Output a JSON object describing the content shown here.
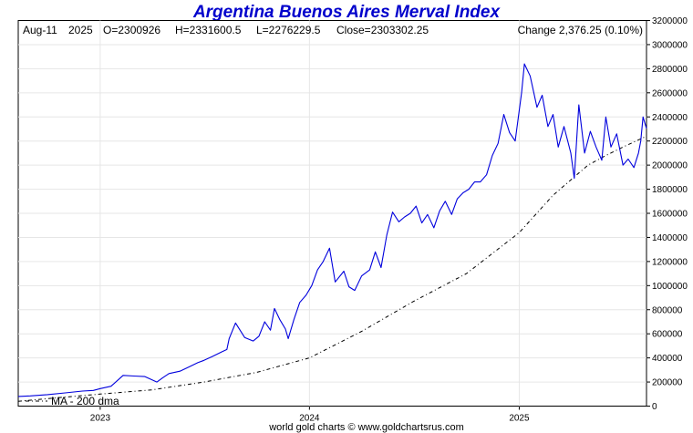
{
  "chart_data": {
    "type": "line",
    "title": "Argentina Buenos Aires Merval Index",
    "header": {
      "date": "Aug-11",
      "year": "2025",
      "open": "O=2300926",
      "high": "H=2331600.5",
      "low": "L=2276229.5",
      "close": "Close=2303302.25",
      "change": "Change 2,376.25 (0.10%)"
    },
    "x_tick_labels": [
      "2023",
      "2024",
      "2025"
    ],
    "x_ticks": [
      "2023-01-01",
      "2024-01-01",
      "2025-01-01"
    ],
    "xlim": [
      "2022-08-11",
      "2025-08-11"
    ],
    "y_tick_labels": [
      "0",
      "200000",
      "400000",
      "600000",
      "800000",
      "1000000",
      "1200000",
      "1400000",
      "1600000",
      "1800000",
      "2000000",
      "2200000",
      "2400000",
      "2600000",
      "2800000",
      "3000000",
      "3200000"
    ],
    "ylim": [
      0,
      3200000
    ],
    "grid": true,
    "legend": {
      "label": "MA - 200 dma",
      "placement": "bottom-left"
    },
    "footer": "world gold charts © www.goldchartsrus.com",
    "colors": {
      "title": "#0000cc",
      "price": "#0000dd",
      "ma": "#000000",
      "grid": "#e6e6e6"
    },
    "series": [
      {
        "key": "price",
        "x": [
          "2022-08-11",
          "2022-09-01",
          "2022-10-01",
          "2022-11-01",
          "2022-12-01",
          "2022-12-20",
          "2023-01-01",
          "2023-01-20",
          "2023-02-10",
          "2023-03-01",
          "2023-03-20",
          "2023-04-10",
          "2023-04-20",
          "2023-05-01",
          "2023-05-20",
          "2023-06-05",
          "2023-06-20",
          "2023-07-01",
          "2023-07-15",
          "2023-08-01",
          "2023-08-10",
          "2023-08-14",
          "2023-08-25",
          "2023-09-10",
          "2023-09-25",
          "2023-10-05",
          "2023-10-15",
          "2023-10-25",
          "2023-11-01",
          "2023-11-10",
          "2023-11-20",
          "2023-11-25",
          "2023-12-05",
          "2023-12-15",
          "2023-12-26",
          "2024-01-05",
          "2024-01-15",
          "2024-01-25",
          "2024-02-05",
          "2024-02-15",
          "2024-03-01",
          "2024-03-10",
          "2024-03-20",
          "2024-04-01",
          "2024-04-15",
          "2024-04-25",
          "2024-05-05",
          "2024-05-15",
          "2024-05-25",
          "2024-06-05",
          "2024-06-15",
          "2024-06-25",
          "2024-07-05",
          "2024-07-15",
          "2024-07-25",
          "2024-08-05",
          "2024-08-15",
          "2024-08-25",
          "2024-09-05",
          "2024-09-15",
          "2024-09-25",
          "2024-10-05",
          "2024-10-15",
          "2024-10-25",
          "2024-11-05",
          "2024-11-15",
          "2024-11-25",
          "2024-12-05",
          "2024-12-15",
          "2024-12-25",
          "2025-01-05",
          "2025-01-10",
          "2025-01-20",
          "2025-02-01",
          "2025-02-10",
          "2025-02-20",
          "2025-03-01",
          "2025-03-10",
          "2025-03-20",
          "2025-04-01",
          "2025-04-07",
          "2025-04-15",
          "2025-04-25",
          "2025-05-05",
          "2025-05-15",
          "2025-05-25",
          "2025-06-01",
          "2025-06-10",
          "2025-06-20",
          "2025-07-01",
          "2025-07-10",
          "2025-07-20",
          "2025-07-28",
          "2025-08-01",
          "2025-08-05",
          "2025-08-11"
        ],
        "values": [
          80000,
          85000,
          95000,
          110000,
          125000,
          130000,
          145000,
          165000,
          255000,
          250000,
          245000,
          200000,
          235000,
          270000,
          290000,
          325000,
          360000,
          380000,
          410000,
          450000,
          470000,
          560000,
          690000,
          570000,
          540000,
          580000,
          700000,
          630000,
          810000,
          720000,
          640000,
          560000,
          720000,
          860000,
          920000,
          1000000,
          1130000,
          1200000,
          1310000,
          1030000,
          1120000,
          990000,
          960000,
          1080000,
          1130000,
          1280000,
          1150000,
          1420000,
          1610000,
          1530000,
          1570000,
          1600000,
          1660000,
          1520000,
          1590000,
          1480000,
          1620000,
          1700000,
          1590000,
          1720000,
          1770000,
          1800000,
          1860000,
          1860000,
          1920000,
          2080000,
          2180000,
          2420000,
          2270000,
          2200000,
          2600000,
          2840000,
          2740000,
          2480000,
          2580000,
          2320000,
          2420000,
          2150000,
          2320000,
          2100000,
          1890000,
          2500000,
          2100000,
          2280000,
          2150000,
          2040000,
          2400000,
          2150000,
          2260000,
          2000000,
          2050000,
          1980000,
          2100000,
          2200000,
          2400000,
          2303302
        ]
      },
      {
        "key": "ma",
        "x": [
          "2022-08-11",
          "2022-11-01",
          "2023-01-01",
          "2023-04-01",
          "2023-07-01",
          "2023-10-01",
          "2024-01-01",
          "2024-04-01",
          "2024-07-01",
          "2024-10-01",
          "2025-01-01",
          "2025-03-01",
          "2025-05-01",
          "2025-06-01",
          "2025-07-01",
          "2025-08-11"
        ],
        "values": [
          40000,
          75000,
          100000,
          135000,
          200000,
          280000,
          400000,
          620000,
          870000,
          1100000,
          1440000,
          1750000,
          2000000,
          2080000,
          2150000,
          2240000
        ]
      }
    ]
  }
}
